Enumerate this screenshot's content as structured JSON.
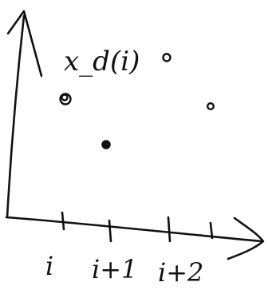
{
  "y_axis_label": "x_d(i)",
  "x_tick_labels": [
    "i",
    "i+1",
    "i+2"
  ],
  "colors": {
    "ink": "#111111",
    "background": "#ffffff"
  }
}
